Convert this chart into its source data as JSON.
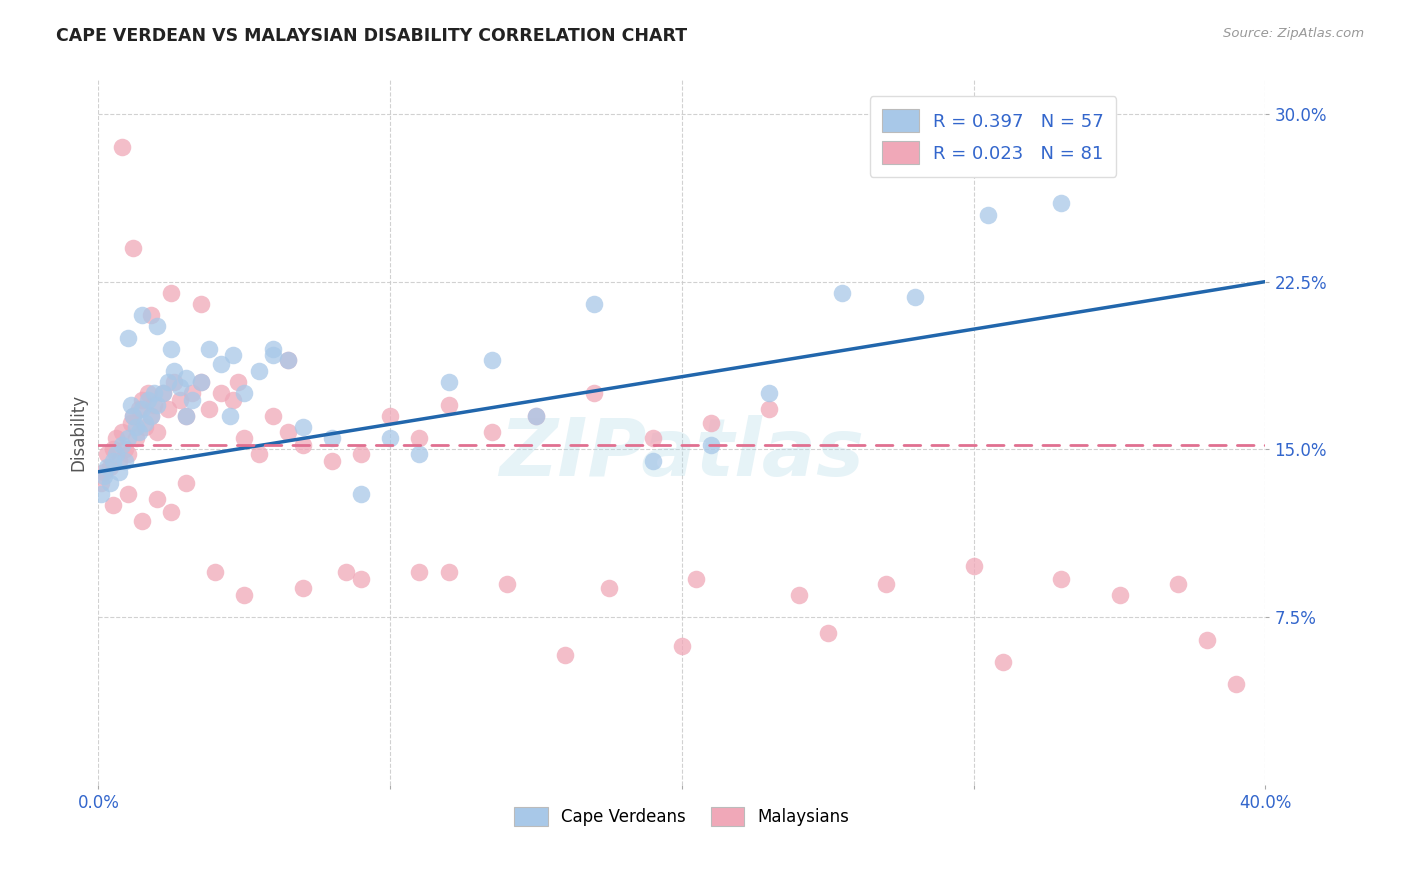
{
  "title": "CAPE VERDEAN VS MALAYSIAN DISABILITY CORRELATION CHART",
  "source": "Source: ZipAtlas.com",
  "ylabel": "Disability",
  "xlim": [
    0.0,
    0.4
  ],
  "ylim": [
    0.0,
    0.315
  ],
  "xticks": [
    0.0,
    0.1,
    0.2,
    0.3,
    0.4
  ],
  "xtick_labels_show": [
    "0.0%",
    "",
    "",
    "",
    "40.0%"
  ],
  "yticks": [
    0.075,
    0.15,
    0.225,
    0.3
  ],
  "ytick_labels": [
    "7.5%",
    "15.0%",
    "22.5%",
    "30.0%"
  ],
  "watermark": "ZIPatlas",
  "color_cv": "#A8C8E8",
  "color_my": "#F0A8B8",
  "color_cv_line": "#2166AC",
  "color_my_line": "#E07090",
  "background_color": "#FFFFFF",
  "grid_color": "#CCCCCC",
  "cv_line_start_y": 0.14,
  "cv_line_end_y": 0.225,
  "my_line_start_y": 0.152,
  "my_line_end_y": 0.152,
  "cv_points_x": [
    0.001,
    0.002,
    0.003,
    0.004,
    0.005,
    0.006,
    0.007,
    0.008,
    0.009,
    0.01,
    0.011,
    0.012,
    0.013,
    0.014,
    0.015,
    0.016,
    0.017,
    0.018,
    0.019,
    0.02,
    0.022,
    0.024,
    0.026,
    0.028,
    0.03,
    0.032,
    0.035,
    0.038,
    0.042,
    0.046,
    0.05,
    0.055,
    0.06,
    0.065,
    0.07,
    0.08,
    0.09,
    0.1,
    0.11,
    0.12,
    0.135,
    0.15,
    0.17,
    0.19,
    0.21,
    0.23,
    0.255,
    0.28,
    0.305,
    0.33,
    0.01,
    0.015,
    0.02,
    0.025,
    0.03,
    0.045,
    0.06
  ],
  "cv_points_y": [
    0.13,
    0.138,
    0.142,
    0.135,
    0.145,
    0.148,
    0.14,
    0.152,
    0.145,
    0.155,
    0.17,
    0.165,
    0.16,
    0.158,
    0.168,
    0.162,
    0.172,
    0.165,
    0.175,
    0.17,
    0.175,
    0.18,
    0.185,
    0.178,
    0.165,
    0.172,
    0.18,
    0.195,
    0.188,
    0.192,
    0.175,
    0.185,
    0.195,
    0.19,
    0.16,
    0.155,
    0.13,
    0.155,
    0.148,
    0.18,
    0.19,
    0.165,
    0.215,
    0.145,
    0.152,
    0.175,
    0.22,
    0.218,
    0.255,
    0.26,
    0.2,
    0.21,
    0.205,
    0.195,
    0.182,
    0.165,
    0.192
  ],
  "my_points_x": [
    0.001,
    0.002,
    0.003,
    0.004,
    0.005,
    0.006,
    0.007,
    0.008,
    0.009,
    0.01,
    0.011,
    0.012,
    0.013,
    0.014,
    0.015,
    0.016,
    0.017,
    0.018,
    0.019,
    0.02,
    0.022,
    0.024,
    0.026,
    0.028,
    0.03,
    0.032,
    0.035,
    0.038,
    0.042,
    0.046,
    0.05,
    0.055,
    0.06,
    0.065,
    0.07,
    0.08,
    0.09,
    0.1,
    0.11,
    0.12,
    0.135,
    0.15,
    0.17,
    0.19,
    0.21,
    0.23,
    0.008,
    0.012,
    0.018,
    0.025,
    0.035,
    0.048,
    0.065,
    0.085,
    0.11,
    0.14,
    0.175,
    0.205,
    0.24,
    0.27,
    0.3,
    0.33,
    0.35,
    0.37,
    0.39,
    0.005,
    0.01,
    0.015,
    0.02,
    0.025,
    0.03,
    0.04,
    0.05,
    0.07,
    0.09,
    0.12,
    0.16,
    0.2,
    0.25,
    0.31,
    0.38
  ],
  "my_points_y": [
    0.135,
    0.14,
    0.148,
    0.142,
    0.15,
    0.155,
    0.145,
    0.158,
    0.15,
    0.148,
    0.162,
    0.165,
    0.155,
    0.168,
    0.172,
    0.16,
    0.175,
    0.165,
    0.17,
    0.158,
    0.175,
    0.168,
    0.18,
    0.172,
    0.165,
    0.175,
    0.18,
    0.168,
    0.175,
    0.172,
    0.155,
    0.148,
    0.165,
    0.158,
    0.152,
    0.145,
    0.148,
    0.165,
    0.155,
    0.17,
    0.158,
    0.165,
    0.175,
    0.155,
    0.162,
    0.168,
    0.285,
    0.24,
    0.21,
    0.22,
    0.215,
    0.18,
    0.19,
    0.095,
    0.095,
    0.09,
    0.088,
    0.092,
    0.085,
    0.09,
    0.098,
    0.092,
    0.085,
    0.09,
    0.045,
    0.125,
    0.13,
    0.118,
    0.128,
    0.122,
    0.135,
    0.095,
    0.085,
    0.088,
    0.092,
    0.095,
    0.058,
    0.062,
    0.068,
    0.055,
    0.065
  ]
}
